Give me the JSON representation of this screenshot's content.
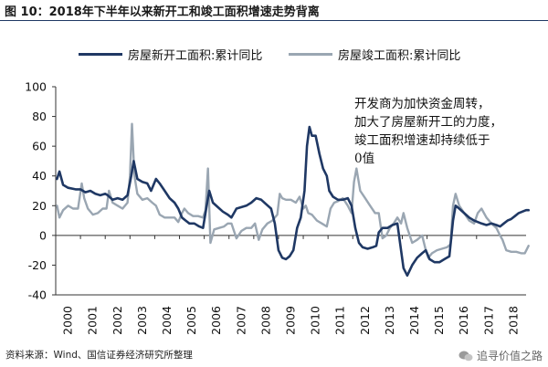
{
  "title": "图 10：2018年下半年以来新开工和竣工面积增速走势背离",
  "colors": {
    "starts": "#1f3864",
    "completions": "#9aa6b2",
    "title_rule": "#1f3864"
  },
  "annotation": [
    "开发商为加快资金周转，",
    "加大了房屋新开工的力度，",
    "竣工面积增速却持续低于",
    "0值"
  ],
  "source": "资料来源：Wind、国信证券经济研究所整理",
  "watermark": "追寻价值之路",
  "watermark_icon": "wechat-icon",
  "chart_data": {
    "type": "line",
    "title": "",
    "xlabel": "",
    "ylabel": "",
    "ylim": [
      -40,
      100
    ],
    "yticks": [
      100,
      80,
      60,
      40,
      20,
      0,
      -20,
      -40
    ],
    "x_range": [
      2000,
      2019
    ],
    "categories": [
      "2000",
      "2001",
      "2002",
      "2003",
      "2004",
      "2005",
      "2006",
      "2007",
      "2008",
      "2009",
      "2010",
      "2011",
      "2012",
      "2013",
      "2014",
      "2015",
      "2016",
      "2017",
      "2018"
    ],
    "legend_position": "top",
    "series": [
      {
        "name": "房屋新开工面积:累计同比",
        "color": "#1f3864",
        "points": [
          [
            2000.05,
            38
          ],
          [
            2000.15,
            43
          ],
          [
            2000.3,
            34
          ],
          [
            2000.5,
            32
          ],
          [
            2000.8,
            31
          ],
          [
            2001.0,
            31
          ],
          [
            2001.2,
            29
          ],
          [
            2001.4,
            30
          ],
          [
            2001.6,
            28
          ],
          [
            2001.8,
            27
          ],
          [
            2002.0,
            28
          ],
          [
            2002.1,
            27
          ],
          [
            2002.3,
            24
          ],
          [
            2002.5,
            25
          ],
          [
            2002.7,
            24
          ],
          [
            2002.9,
            27
          ],
          [
            2003.05,
            40
          ],
          [
            2003.15,
            50
          ],
          [
            2003.3,
            38
          ],
          [
            2003.5,
            36
          ],
          [
            2003.7,
            35
          ],
          [
            2003.85,
            30
          ],
          [
            2004.05,
            38
          ],
          [
            2004.2,
            35
          ],
          [
            2004.4,
            30
          ],
          [
            2004.6,
            25
          ],
          [
            2004.8,
            22
          ],
          [
            2004.95,
            18
          ],
          [
            2005.1,
            12
          ],
          [
            2005.25,
            10
          ],
          [
            2005.4,
            8
          ],
          [
            2005.6,
            8
          ],
          [
            2005.8,
            6
          ],
          [
            2005.95,
            5
          ],
          [
            2006.1,
            20
          ],
          [
            2006.2,
            30
          ],
          [
            2006.35,
            22
          ],
          [
            2006.55,
            19
          ],
          [
            2006.75,
            16
          ],
          [
            2006.95,
            14
          ],
          [
            2007.1,
            12
          ],
          [
            2007.3,
            18
          ],
          [
            2007.5,
            19
          ],
          [
            2007.7,
            20
          ],
          [
            2007.9,
            22
          ],
          [
            2008.1,
            25
          ],
          [
            2008.3,
            24
          ],
          [
            2008.5,
            21
          ],
          [
            2008.7,
            18
          ],
          [
            2008.85,
            8
          ],
          [
            2009.0,
            -10
          ],
          [
            2009.15,
            -15
          ],
          [
            2009.3,
            -16
          ],
          [
            2009.45,
            -14
          ],
          [
            2009.6,
            -10
          ],
          [
            2009.75,
            5
          ],
          [
            2009.9,
            12
          ],
          [
            2010.05,
            30
          ],
          [
            2010.15,
            60
          ],
          [
            2010.25,
            73
          ],
          [
            2010.35,
            67
          ],
          [
            2010.5,
            67
          ],
          [
            2010.65,
            55
          ],
          [
            2010.8,
            45
          ],
          [
            2010.95,
            40
          ],
          [
            2011.05,
            30
          ],
          [
            2011.2,
            26
          ],
          [
            2011.4,
            24
          ],
          [
            2011.6,
            24
          ],
          [
            2011.8,
            25
          ],
          [
            2011.95,
            20
          ],
          [
            2012.1,
            5
          ],
          [
            2012.25,
            -5
          ],
          [
            2012.4,
            -8
          ],
          [
            2012.6,
            -9
          ],
          [
            2012.8,
            -8
          ],
          [
            2012.95,
            -7
          ],
          [
            2013.05,
            2
          ],
          [
            2013.2,
            5
          ],
          [
            2013.4,
            5
          ],
          [
            2013.6,
            7
          ],
          [
            2013.8,
            8
          ],
          [
            2013.95,
            -10
          ],
          [
            2014.05,
            -22
          ],
          [
            2014.2,
            -27
          ],
          [
            2014.4,
            -20
          ],
          [
            2014.6,
            -15
          ],
          [
            2014.8,
            -12
          ],
          [
            2014.95,
            -10
          ],
          [
            2015.1,
            -16
          ],
          [
            2015.3,
            -18
          ],
          [
            2015.5,
            -18
          ],
          [
            2015.7,
            -16
          ],
          [
            2015.9,
            -14
          ],
          [
            2016.05,
            10
          ],
          [
            2016.15,
            20
          ],
          [
            2016.3,
            18
          ],
          [
            2016.5,
            15
          ],
          [
            2016.7,
            12
          ],
          [
            2016.9,
            10
          ],
          [
            2017.05,
            9
          ],
          [
            2017.2,
            8
          ],
          [
            2017.4,
            7
          ],
          [
            2017.6,
            8
          ],
          [
            2017.8,
            7
          ],
          [
            2017.95,
            6
          ],
          [
            2018.1,
            8
          ],
          [
            2018.25,
            10
          ],
          [
            2018.4,
            11
          ],
          [
            2018.55,
            13
          ],
          [
            2018.7,
            15
          ],
          [
            2018.85,
            16
          ],
          [
            2019.0,
            17
          ],
          [
            2019.1,
            17
          ]
        ]
      },
      {
        "name": "房屋竣工面积:累计同比",
        "color": "#9aa6b2",
        "points": [
          [
            2000.05,
            20
          ],
          [
            2000.15,
            12
          ],
          [
            2000.3,
            17
          ],
          [
            2000.5,
            20
          ],
          [
            2000.7,
            18
          ],
          [
            2000.9,
            18
          ],
          [
            2001.05,
            35
          ],
          [
            2001.15,
            25
          ],
          [
            2001.3,
            18
          ],
          [
            2001.5,
            14
          ],
          [
            2001.7,
            15
          ],
          [
            2001.9,
            18
          ],
          [
            2002.05,
            18
          ],
          [
            2002.15,
            30
          ],
          [
            2002.3,
            22
          ],
          [
            2002.5,
            20
          ],
          [
            2002.7,
            18
          ],
          [
            2002.9,
            22
          ],
          [
            2003.0,
            40
          ],
          [
            2003.08,
            75
          ],
          [
            2003.18,
            40
          ],
          [
            2003.3,
            28
          ],
          [
            2003.5,
            24
          ],
          [
            2003.7,
            25
          ],
          [
            2003.9,
            22
          ],
          [
            2004.05,
            20
          ],
          [
            2004.2,
            14
          ],
          [
            2004.4,
            12
          ],
          [
            2004.6,
            12
          ],
          [
            2004.8,
            12
          ],
          [
            2004.95,
            9
          ],
          [
            2005.1,
            15
          ],
          [
            2005.2,
            18
          ],
          [
            2005.35,
            15
          ],
          [
            2005.55,
            13
          ],
          [
            2005.75,
            13
          ],
          [
            2005.95,
            12
          ],
          [
            2006.05,
            17
          ],
          [
            2006.15,
            45
          ],
          [
            2006.25,
            -5
          ],
          [
            2006.4,
            4
          ],
          [
            2006.6,
            5
          ],
          [
            2006.8,
            6
          ],
          [
            2006.95,
            8
          ],
          [
            2007.1,
            8
          ],
          [
            2007.3,
            -2
          ],
          [
            2007.5,
            3
          ],
          [
            2007.7,
            5
          ],
          [
            2007.9,
            5
          ],
          [
            2008.05,
            8
          ],
          [
            2008.2,
            -3
          ],
          [
            2008.35,
            4
          ],
          [
            2008.55,
            8
          ],
          [
            2008.75,
            10
          ],
          [
            2008.95,
            14
          ],
          [
            2009.05,
            28
          ],
          [
            2009.15,
            25
          ],
          [
            2009.3,
            24
          ],
          [
            2009.5,
            24
          ],
          [
            2009.7,
            22
          ],
          [
            2009.85,
            26
          ],
          [
            2010.0,
            18
          ],
          [
            2010.1,
            20
          ],
          [
            2010.2,
            15
          ],
          [
            2010.35,
            14
          ],
          [
            2010.55,
            10
          ],
          [
            2010.75,
            8
          ],
          [
            2010.95,
            6
          ],
          [
            2011.1,
            18
          ],
          [
            2011.25,
            22
          ],
          [
            2011.4,
            23
          ],
          [
            2011.6,
            25
          ],
          [
            2011.8,
            20
          ],
          [
            2011.95,
            15
          ],
          [
            2012.05,
            36
          ],
          [
            2012.15,
            45
          ],
          [
            2012.3,
            30
          ],
          [
            2012.5,
            25
          ],
          [
            2012.7,
            20
          ],
          [
            2012.9,
            15
          ],
          [
            2013.05,
            15
          ],
          [
            2013.2,
            -2
          ],
          [
            2013.35,
            0
          ],
          [
            2013.5,
            5
          ],
          [
            2013.65,
            8
          ],
          [
            2013.8,
            12
          ],
          [
            2013.95,
            8
          ],
          [
            2014.05,
            15
          ],
          [
            2014.2,
            5
          ],
          [
            2014.4,
            -5
          ],
          [
            2014.6,
            -3
          ],
          [
            2014.8,
            0
          ],
          [
            2014.95,
            -10
          ],
          [
            2015.05,
            -15
          ],
          [
            2015.2,
            -12
          ],
          [
            2015.4,
            -10
          ],
          [
            2015.6,
            -9
          ],
          [
            2015.8,
            -8
          ],
          [
            2015.95,
            -6
          ],
          [
            2016.05,
            20
          ],
          [
            2016.15,
            28
          ],
          [
            2016.3,
            20
          ],
          [
            2016.5,
            15
          ],
          [
            2016.7,
            10
          ],
          [
            2016.9,
            8
          ],
          [
            2017.05,
            15
          ],
          [
            2017.2,
            18
          ],
          [
            2017.4,
            12
          ],
          [
            2017.6,
            8
          ],
          [
            2017.8,
            5
          ],
          [
            2017.95,
            0
          ],
          [
            2018.05,
            -3
          ],
          [
            2018.2,
            -10
          ],
          [
            2018.4,
            -11
          ],
          [
            2018.6,
            -11
          ],
          [
            2018.8,
            -12
          ],
          [
            2018.95,
            -12
          ],
          [
            2019.1,
            -7
          ]
        ]
      }
    ]
  }
}
